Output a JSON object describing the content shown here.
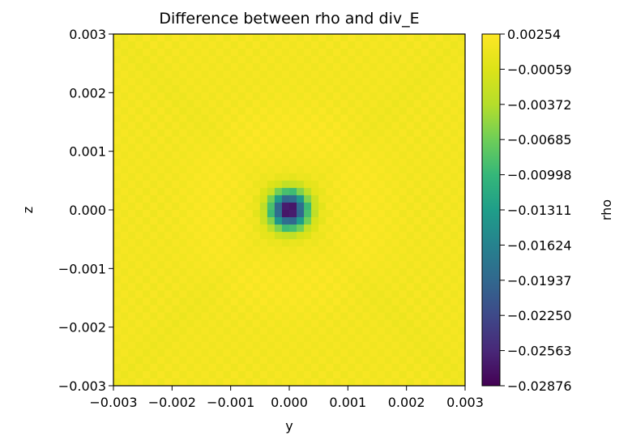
{
  "chart_data": {
    "type": "heatmap",
    "title": "Difference between rho and div_E",
    "xlabel": "y",
    "ylabel": "z",
    "xlim": [
      -0.003,
      0.003
    ],
    "ylim": [
      -0.003,
      0.003
    ],
    "x_ticks": [
      "−0.003",
      "−0.002",
      "−0.001",
      "0.000",
      "0.001",
      "0.002",
      "0.003"
    ],
    "y_ticks": [
      "−0.003",
      "−0.002",
      "−0.001",
      "0.000",
      "0.001",
      "0.002",
      "0.003"
    ],
    "colormap": "viridis",
    "grid_size": [
      48,
      48
    ],
    "colorbar": {
      "label": "rho",
      "min": -0.02876,
      "max": 0.00254,
      "ticks": [
        "0.00254",
        "−0.00059",
        "−0.00372",
        "−0.00685",
        "−0.00998",
        "−0.01311",
        "−0.01624",
        "−0.01937",
        "−0.02250",
        "−0.02563",
        "−0.02876"
      ]
    },
    "field": {
      "background_value": 0.0016,
      "checker_amplitude": 0.00045,
      "center": [
        0.0,
        0.0
      ],
      "min_value": -0.02876,
      "max_value": 0.00254
    },
    "grid": false,
    "legend": "none"
  }
}
